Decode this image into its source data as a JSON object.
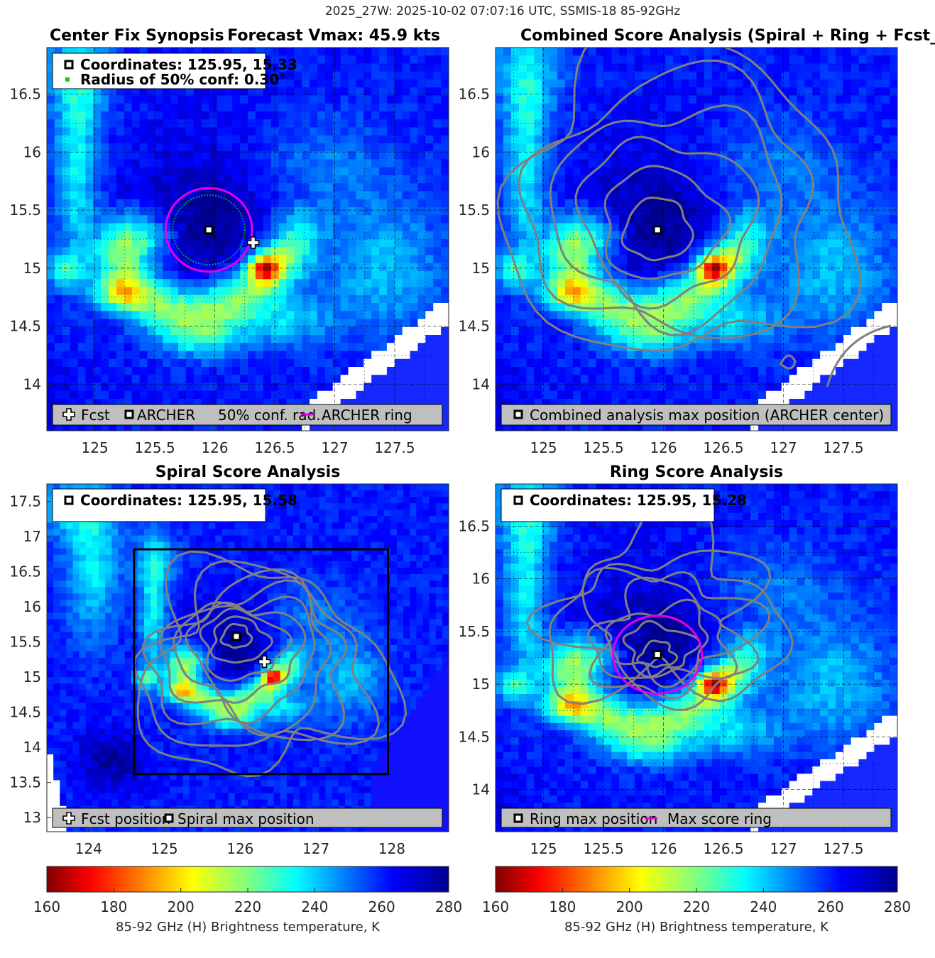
{
  "suptitle": "2025_27W: 2025-10-02 07:07:16 UTC, SSMIS-18 85-92GHz",
  "colors": {
    "fcst_marker": "#ffffff",
    "archer_marker": "#000000",
    "conf_ring": "#00d000",
    "archer_ring": "#e600e6",
    "contour": "#808080",
    "box": "#000000",
    "legend_bg": "#bfbfbf"
  },
  "colorbar": {
    "label": "85-92 GHz (H) Brightness temperature, K",
    "ticks": [
      "160",
      "180",
      "200",
      "220",
      "240",
      "260",
      "280"
    ],
    "range": [
      160,
      280
    ],
    "colormap": "jet_reversed"
  },
  "panels": [
    {
      "id": "tl",
      "title_left": "Center Fix Synopsis",
      "title_right": "Forecast Vmax: 45.9 kts",
      "info_lines": [
        "Coordinates: 125.95, 15.33",
        "Radius of 50% conf: 0.30°"
      ],
      "legend_items": [
        "Fcst",
        "ARCHER",
        "50% conf. rad.",
        "ARCHER ring"
      ]
    },
    {
      "id": "tr",
      "title": "Combined Score Analysis (Spiral + Ring + Fcst_Pe",
      "legend_items": [
        "Combined analysis max position (ARCHER center)"
      ]
    },
    {
      "id": "bl",
      "title": "Spiral Score Analysis",
      "info_lines": [
        "Coordinates: 125.95, 15.58"
      ],
      "legend_items": [
        "Fcst position",
        "Spiral max position"
      ]
    },
    {
      "id": "br",
      "title": "Ring Score Analysis",
      "info_lines": [
        "Coordinates: 125.95, 15.28"
      ],
      "legend_items": [
        "Ring max position",
        "Max score ring"
      ]
    }
  ],
  "chart_data": [
    {
      "type": "heatmap",
      "title": "Center Fix Synopsis",
      "subtitle": "Forecast Vmax: 45.9 kts",
      "x_ticks": [
        "125",
        "125.5",
        "126",
        "126.5",
        "127",
        "127.5"
      ],
      "y_ticks": [
        "14",
        "14.5",
        "15",
        "15.5",
        "16",
        "16.5"
      ],
      "xlim": [
        124.6,
        127.95
      ],
      "ylim": [
        13.6,
        16.9
      ],
      "grid": true,
      "archer_center": [
        125.95,
        15.33
      ],
      "fcst_position": [
        126.32,
        15.22
      ],
      "archer_ring_radius_deg": 0.36,
      "conf_radius_deg": 0.3,
      "cold_spot_min_K": 172
    },
    {
      "type": "heatmap",
      "title": "Combined Score Analysis (Spiral + Ring + Fcst_Pe",
      "x_ticks": [
        "125",
        "125.5",
        "126",
        "126.5",
        "127",
        "127.5"
      ],
      "y_ticks": [
        "14",
        "14.5",
        "15",
        "15.5",
        "16",
        "16.5"
      ],
      "xlim": [
        124.6,
        127.95
      ],
      "ylim": [
        13.6,
        16.9
      ],
      "grid": true,
      "max_position": [
        125.95,
        15.33
      ],
      "contour_radii_deg": [
        0.28,
        0.5,
        0.72,
        0.95,
        1.18,
        1.42
      ]
    },
    {
      "type": "heatmap",
      "title": "Spiral Score Analysis",
      "x_ticks": [
        "124",
        "125",
        "126",
        "127",
        "128"
      ],
      "y_ticks": [
        "13",
        "13.5",
        "14",
        "14.5",
        "15",
        "15.5",
        "16",
        "16.5",
        "17",
        "17.5"
      ],
      "xlim": [
        123.45,
        128.75
      ],
      "ylim": [
        12.8,
        17.75
      ],
      "grid": false,
      "spiral_max": [
        125.95,
        15.58
      ],
      "fcst_position": [
        126.32,
        15.22
      ],
      "search_box": {
        "x": [
          124.6,
          127.95
        ],
        "y": [
          13.62,
          16.82
        ]
      }
    },
    {
      "type": "heatmap",
      "title": "Ring Score Analysis",
      "x_ticks": [
        "125",
        "125.5",
        "126",
        "126.5",
        "127",
        "127.5"
      ],
      "y_ticks": [
        "14",
        "14.5",
        "15",
        "15.5",
        "16",
        "16.5"
      ],
      "xlim": [
        124.6,
        127.95
      ],
      "ylim": [
        13.6,
        16.9
      ],
      "grid": true,
      "ring_max": [
        125.95,
        15.28
      ],
      "max_score_ring_radius_deg": 0.37
    }
  ]
}
